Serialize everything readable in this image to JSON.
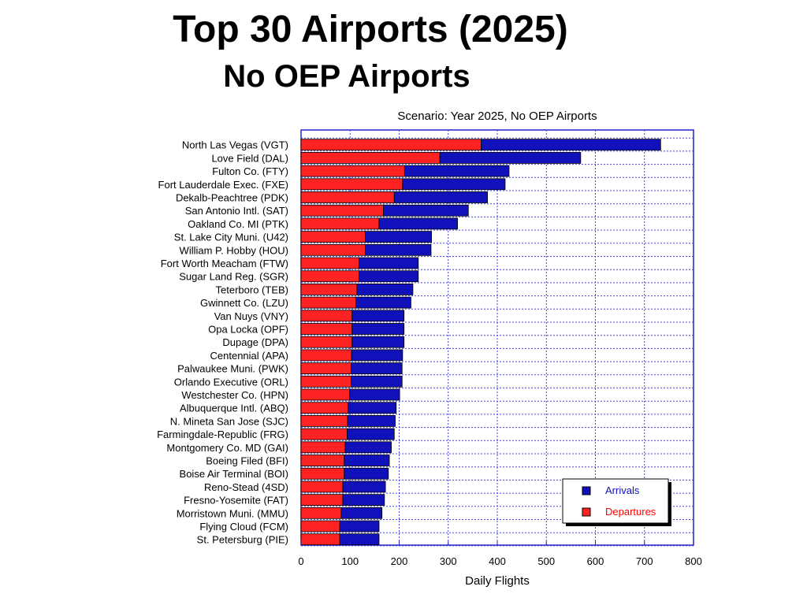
{
  "slide": {
    "title": "Top 30 Airports (2025)",
    "subtitle": "No OEP Airports"
  },
  "chart_data": {
    "type": "bar",
    "orientation": "horizontal",
    "stacked": true,
    "title": "Scenario: Year 2025, No OEP Airports",
    "xlabel": "Daily Flights",
    "ylabel": "",
    "xlim": [
      0,
      800
    ],
    "xticks": [
      0,
      100,
      200,
      300,
      400,
      500,
      600,
      700,
      800
    ],
    "grid": true,
    "legend_position": "bottom-right",
    "categories": [
      "North Las Vegas (VGT)",
      "Love Field (DAL)",
      "Fulton Co. (FTY)",
      "Fort Lauderdale Exec. (FXE)",
      "Dekalb-Peachtree (PDK)",
      "San Antonio Intl. (SAT)",
      "Oakland Co. MI (PTK)",
      "St. Lake City Muni. (U42)",
      "William P. Hobby (HOU)",
      "Fort Worth Meacham (FTW)",
      "Sugar Land Reg. (SGR)",
      "Teterboro (TEB)",
      "Gwinnett Co. (LZU)",
      "Van Nuys (VNY)",
      "Opa Locka (OPF)",
      "Dupage (DPA)",
      "Centennial (APA)",
      "Palwaukee Muni. (PWK)",
      "Orlando Executive (ORL)",
      "Westchester Co. (HPN)",
      "Albuquerque Intl. (ABQ)",
      "N. Mineta San Jose (SJC)",
      "Farmingdale-Republic (FRG)",
      "Montgomery Co. MD (GAI)",
      "Boeing Filed (BFI)",
      "Boise Air Terminal (BOI)",
      "Reno-Stead (4SD)",
      "Fresno-Yosemite (FAT)",
      "Morristown Muni. (MMU)",
      "Flying Cloud (FCM)",
      "St. Petersburg (PIE)"
    ],
    "series": [
      {
        "name": "Departures",
        "color": "#ff2222",
        "values": [
          367,
          283,
          211,
          207,
          190,
          168,
          159,
          131,
          131,
          118,
          118,
          114,
          112,
          104,
          104,
          104,
          103,
          102,
          102,
          99,
          96,
          95,
          94,
          90,
          88,
          88,
          85,
          85,
          82,
          79,
          79
        ]
      },
      {
        "name": "Arrivals",
        "color": "#1111bb",
        "values": [
          366,
          287,
          213,
          209,
          190,
          173,
          160,
          135,
          134,
          121,
          121,
          114,
          112,
          106,
          106,
          106,
          104,
          104,
          104,
          102,
          98,
          97,
          96,
          94,
          92,
          90,
          87,
          85,
          83,
          80,
          80
        ]
      }
    ]
  }
}
